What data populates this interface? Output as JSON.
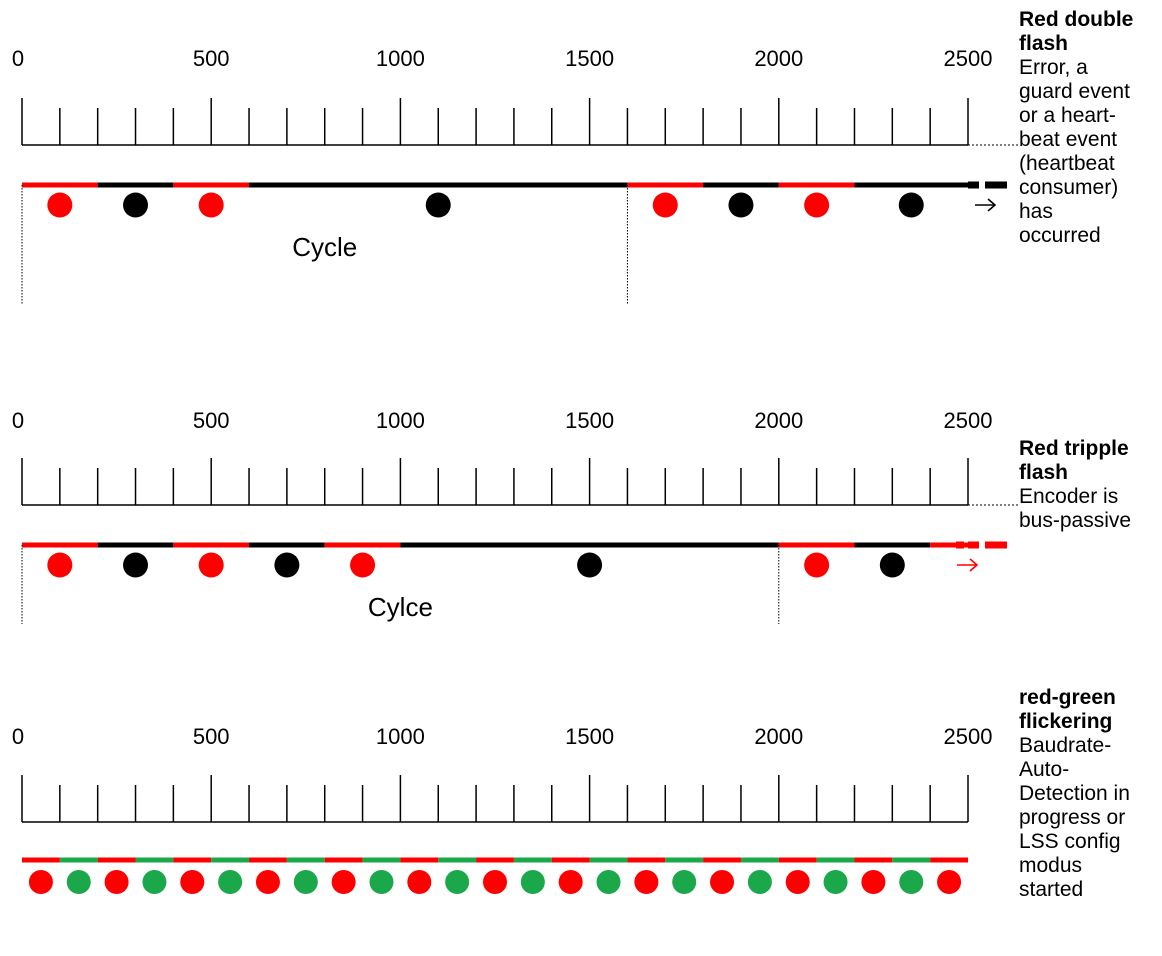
{
  "colors": {
    "red": "#ff0000",
    "black": "#000000",
    "green": "#1aa84a"
  },
  "ticks": {
    "labels": [
      "0",
      "500",
      "1000",
      "1500",
      "2000",
      "2500"
    ],
    "max": 2500,
    "minor_step": 100
  },
  "panels": [
    {
      "id": "red-double-flash",
      "title": "Red double flash",
      "description": "Error, a\nguard event\nor a heart-\nbeat event\n(heartbeat\nconsumer)\nhas\noccurred",
      "cycle_label": "Cycle",
      "cycle_end": 1600,
      "segments": [
        {
          "from": 0,
          "to": 200,
          "color": "red"
        },
        {
          "from": 200,
          "to": 400,
          "color": "black"
        },
        {
          "from": 400,
          "to": 600,
          "color": "red"
        },
        {
          "from": 600,
          "to": 1600,
          "color": "black"
        },
        {
          "from": 1600,
          "to": 1800,
          "color": "red"
        },
        {
          "from": 1800,
          "to": 2000,
          "color": "black"
        },
        {
          "from": 2000,
          "to": 2200,
          "color": "red"
        },
        {
          "from": 2200,
          "to": 2500,
          "color": "black"
        }
      ],
      "dots": [
        {
          "t": 100,
          "color": "red"
        },
        {
          "t": 300,
          "color": "black"
        },
        {
          "t": 500,
          "color": "red"
        },
        {
          "t": 1100,
          "color": "black"
        },
        {
          "t": 1700,
          "color": "red"
        },
        {
          "t": 1900,
          "color": "black"
        },
        {
          "t": 2100,
          "color": "red"
        },
        {
          "t": 2350,
          "color": "black"
        }
      ],
      "continuation_color": "black",
      "arrow_glyph": "→"
    },
    {
      "id": "red-tripple-flash",
      "title": "Red tripple flash",
      "description": "Encoder is\nbus-passive",
      "cycle_label": "Cylce",
      "cycle_end": 2000,
      "segments": [
        {
          "from": 0,
          "to": 200,
          "color": "red"
        },
        {
          "from": 200,
          "to": 400,
          "color": "black"
        },
        {
          "from": 400,
          "to": 600,
          "color": "red"
        },
        {
          "from": 600,
          "to": 800,
          "color": "black"
        },
        {
          "from": 800,
          "to": 1000,
          "color": "red"
        },
        {
          "from": 1000,
          "to": 2000,
          "color": "black"
        },
        {
          "from": 2000,
          "to": 2200,
          "color": "red"
        },
        {
          "from": 2200,
          "to": 2400,
          "color": "black"
        },
        {
          "from": 2400,
          "to": 2500,
          "color": "red"
        }
      ],
      "dots": [
        {
          "t": 100,
          "color": "red"
        },
        {
          "t": 300,
          "color": "black"
        },
        {
          "t": 500,
          "color": "red"
        },
        {
          "t": 700,
          "color": "black"
        },
        {
          "t": 900,
          "color": "red"
        },
        {
          "t": 1500,
          "color": "black"
        },
        {
          "t": 2100,
          "color": "red"
        },
        {
          "t": 2300,
          "color": "black"
        }
      ],
      "continuation_color": "red",
      "arrow_glyph": "→"
    },
    {
      "id": "red-green-flickering",
      "title": "red-green flickering",
      "description": "Baudrate-\nAuto-\nDetection in\nprogress or\nLSS config\nmodus\nstarted",
      "cycle_label": "",
      "cycle_end": null,
      "segments": [
        {
          "from": 0,
          "to": 100,
          "color": "red"
        },
        {
          "from": 100,
          "to": 200,
          "color": "green"
        },
        {
          "from": 200,
          "to": 300,
          "color": "red"
        },
        {
          "from": 300,
          "to": 400,
          "color": "green"
        },
        {
          "from": 400,
          "to": 500,
          "color": "red"
        },
        {
          "from": 500,
          "to": 600,
          "color": "green"
        },
        {
          "from": 600,
          "to": 700,
          "color": "red"
        },
        {
          "from": 700,
          "to": 800,
          "color": "green"
        },
        {
          "from": 800,
          "to": 900,
          "color": "red"
        },
        {
          "from": 900,
          "to": 1000,
          "color": "green"
        },
        {
          "from": 1000,
          "to": 1100,
          "color": "red"
        },
        {
          "from": 1100,
          "to": 1200,
          "color": "green"
        },
        {
          "from": 1200,
          "to": 1300,
          "color": "red"
        },
        {
          "from": 1300,
          "to": 1400,
          "color": "green"
        },
        {
          "from": 1400,
          "to": 1500,
          "color": "red"
        },
        {
          "from": 1500,
          "to": 1600,
          "color": "green"
        },
        {
          "from": 1600,
          "to": 1700,
          "color": "red"
        },
        {
          "from": 1700,
          "to": 1800,
          "color": "green"
        },
        {
          "from": 1800,
          "to": 1900,
          "color": "red"
        },
        {
          "from": 1900,
          "to": 2000,
          "color": "green"
        },
        {
          "from": 2000,
          "to": 2100,
          "color": "red"
        },
        {
          "from": 2100,
          "to": 2200,
          "color": "green"
        },
        {
          "from": 2200,
          "to": 2300,
          "color": "red"
        },
        {
          "from": 2300,
          "to": 2400,
          "color": "green"
        },
        {
          "from": 2400,
          "to": 2500,
          "color": "red"
        }
      ],
      "dots": [
        {
          "t": 50,
          "color": "red"
        },
        {
          "t": 150,
          "color": "green"
        },
        {
          "t": 250,
          "color": "red"
        },
        {
          "t": 350,
          "color": "green"
        },
        {
          "t": 450,
          "color": "red"
        },
        {
          "t": 550,
          "color": "green"
        },
        {
          "t": 650,
          "color": "red"
        },
        {
          "t": 750,
          "color": "green"
        },
        {
          "t": 850,
          "color": "red"
        },
        {
          "t": 950,
          "color": "green"
        },
        {
          "t": 1050,
          "color": "red"
        },
        {
          "t": 1150,
          "color": "green"
        },
        {
          "t": 1250,
          "color": "red"
        },
        {
          "t": 1350,
          "color": "green"
        },
        {
          "t": 1450,
          "color": "red"
        },
        {
          "t": 1550,
          "color": "green"
        },
        {
          "t": 1650,
          "color": "red"
        },
        {
          "t": 1750,
          "color": "green"
        },
        {
          "t": 1850,
          "color": "red"
        },
        {
          "t": 1950,
          "color": "green"
        },
        {
          "t": 2050,
          "color": "red"
        },
        {
          "t": 2150,
          "color": "green"
        },
        {
          "t": 2250,
          "color": "red"
        },
        {
          "t": 2350,
          "color": "green"
        },
        {
          "t": 2450,
          "color": "red"
        }
      ],
      "continuation_color": null,
      "arrow_glyph": ""
    }
  ]
}
